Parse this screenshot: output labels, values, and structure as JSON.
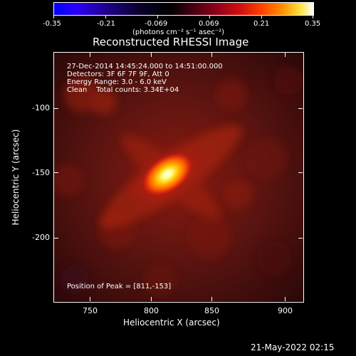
{
  "colorbar": {
    "ticks": [
      "-0.35",
      "-0.21",
      "-0.069",
      "0.069",
      "0.21",
      "0.35"
    ],
    "units_label": "(photons cm⁻² s⁻¹ asec⁻²)"
  },
  "plot": {
    "title": "Reconstructed RHESSI Image",
    "info_lines": [
      "27-Dec-2014 14:45:24.000 to 14:51:00.000",
      "Detectors: 3F 6F 7F 9F, Att 0",
      "Energy Range: 3.0 - 6.0 keV",
      "Clean    Total counts: 3.34E+04"
    ],
    "peak_text": "Position of Peak = [811,-153]",
    "xlabel": "Heliocentric X (arcsec)",
    "ylabel": "Heliocentric Y (arcsec)",
    "xticks": [
      "750",
      "800",
      "850",
      "900"
    ],
    "yticks": [
      "-100",
      "-150",
      "-200"
    ]
  },
  "footer": {
    "timestamp": "21-May-2022 02:15"
  },
  "colors": {
    "background": "#000000",
    "colormap_low": "#0000ff",
    "colormap_high": "#ffffff"
  }
}
